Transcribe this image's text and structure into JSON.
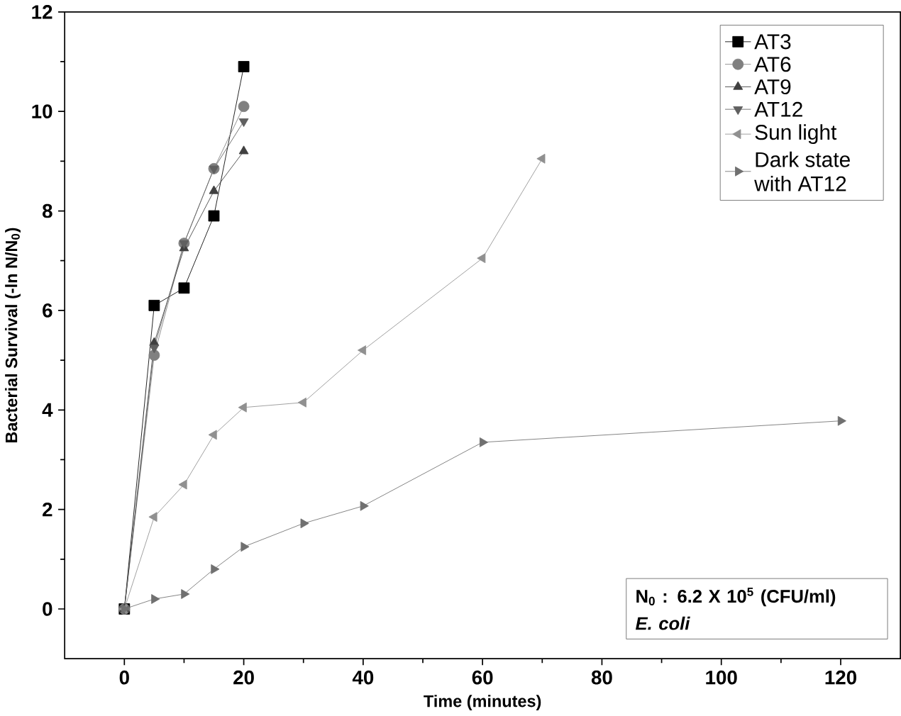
{
  "chart_data": {
    "type": "line",
    "xlabel": "Time (minutes)",
    "ylabel": "Bacterial Survival (-ln N/N$_{0}$)",
    "xlim": [
      -10,
      130
    ],
    "ylim": [
      -1,
      12
    ],
    "xticks": [
      0,
      20,
      40,
      60,
      80,
      100,
      120
    ],
    "yticks": [
      0,
      2,
      4,
      6,
      8,
      10,
      12
    ],
    "legend": "top right",
    "grid": false,
    "series": [
      {
        "name": "AT3",
        "color": "#000000",
        "marker": "square",
        "x": [
          0,
          5,
          10,
          15,
          20
        ],
        "values": [
          0,
          6.1,
          6.45,
          7.9,
          10.9
        ]
      },
      {
        "name": "AT6",
        "color": "#808080",
        "marker": "circle",
        "x": [
          0,
          5,
          10,
          15,
          20
        ],
        "values": [
          0,
          5.1,
          7.35,
          8.85,
          10.1
        ]
      },
      {
        "name": "AT9",
        "color": "#404040",
        "marker": "triangle",
        "x": [
          0,
          5,
          10,
          15,
          20
        ],
        "values": [
          0,
          5.35,
          7.25,
          8.4,
          9.2
        ]
      },
      {
        "name": "AT12",
        "color": "#606060",
        "marker": "triangle-down",
        "x": [
          0,
          5,
          10,
          15,
          20
        ],
        "values": [
          0,
          5.25,
          7.35,
          8.85,
          9.8
        ]
      },
      {
        "name": "Sun light",
        "color": "#909090",
        "marker": "triangle-left",
        "x": [
          0,
          5,
          10,
          15,
          20,
          30,
          40,
          60,
          70
        ],
        "values": [
          0,
          1.85,
          2.5,
          3.5,
          4.05,
          4.15,
          5.2,
          7.05,
          9.05
        ]
      },
      {
        "name": "Dark state with AT12",
        "color": "#707070",
        "marker": "triangle-right",
        "x": [
          0,
          5,
          10,
          15,
          20,
          30,
          40,
          60,
          120
        ],
        "values": [
          0,
          0.2,
          0.3,
          0.8,
          1.25,
          1.72,
          2.07,
          3.35,
          3.78
        ]
      }
    ],
    "annotations": [
      "N$_{0}$ : 6.2 X 10$^{5}$ (CFU/ml)",
      "E. coli"
    ]
  }
}
